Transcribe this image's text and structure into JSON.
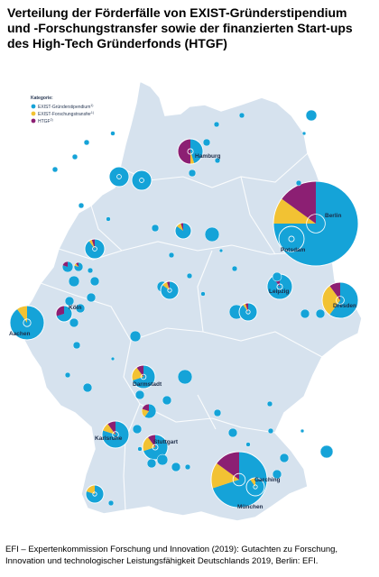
{
  "title": "Verteilung der Förderfälle von EXIST-Gründerstipendium und -Forschungstransfer sowie der finanzierten Start-ups des High-Tech Gründerfonds (HTGF)",
  "legend": {
    "title": "Kategorie:",
    "items": [
      {
        "label": "EXIST-Gründerstipendium",
        "sup": "1)",
        "color": "#15a3d8"
      },
      {
        "label": "EXIST-Forschungstransfer",
        "sup": "1)",
        "color": "#f2c233"
      },
      {
        "label": "HTGF",
        "sup": "2)",
        "color": "#8c1f73"
      }
    ]
  },
  "cities": [
    {
      "name": "Hamburg"
    },
    {
      "name": "Berlin"
    },
    {
      "name": "Potsdam"
    },
    {
      "name": "Leipzig"
    },
    {
      "name": "Dresden"
    },
    {
      "name": "Köln"
    },
    {
      "name": "Aachen"
    },
    {
      "name": "Darmstadt"
    },
    {
      "name": "Karlsruhe"
    },
    {
      "name": "Stuttgart"
    },
    {
      "name": "Garching"
    },
    {
      "name": "München"
    }
  ],
  "colors": {
    "land": "#d6e2ee",
    "border": "#ffffff",
    "exist_gs": "#15a3d8",
    "exist_ft": "#f2c233",
    "htgf": "#8c1f73"
  },
  "footer": "EFI – Expertenkommission Forschung und Innovation (2019): Gutachten zu Forschung, Innovation und technologischer Leistungsfähigkeit Deutschlands 2019, Berlin: EFI."
}
